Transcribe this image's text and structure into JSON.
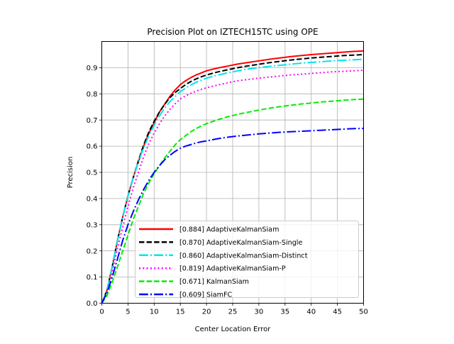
{
  "chart_data": {
    "type": "line",
    "title": "Precision Plot on IZTECH15TC using OPE",
    "xlabel": "Center Location Error",
    "ylabel": "Precision",
    "xlim": [
      0,
      50
    ],
    "ylim": [
      0,
      1.0
    ],
    "xticks": [
      0,
      5,
      10,
      15,
      20,
      25,
      30,
      35,
      40,
      45,
      50
    ],
    "yticks": [
      0.0,
      0.1,
      0.2,
      0.3,
      0.4,
      0.5,
      0.6,
      0.7,
      0.8,
      0.9
    ],
    "xtick_labels": [
      "0",
      "5",
      "10",
      "15",
      "20",
      "25",
      "30",
      "35",
      "40",
      "45",
      "50"
    ],
    "ytick_labels": [
      "0.0",
      "0.1",
      "0.2",
      "0.3",
      "0.4",
      "0.5",
      "0.6",
      "0.7",
      "0.8",
      "0.9"
    ],
    "grid": true,
    "legend_position": "lower-right",
    "x": [
      0,
      1,
      2,
      3,
      4,
      5,
      6,
      7,
      8,
      9,
      10,
      11,
      12,
      13,
      14,
      15,
      16,
      17,
      18,
      19,
      20,
      22,
      24,
      26,
      28,
      30,
      32,
      34,
      36,
      38,
      40,
      42,
      44,
      46,
      48,
      50
    ],
    "series": [
      {
        "name": "[0.884] AdaptiveKalmanSiam",
        "color": "#ff0000",
        "style": "solid",
        "values": [
          0,
          0.05,
          0.14,
          0.24,
          0.33,
          0.41,
          0.48,
          0.54,
          0.6,
          0.65,
          0.69,
          0.73,
          0.76,
          0.79,
          0.815,
          0.835,
          0.85,
          0.862,
          0.872,
          0.88,
          0.888,
          0.898,
          0.906,
          0.914,
          0.92,
          0.926,
          0.932,
          0.937,
          0.942,
          0.946,
          0.95,
          0.953,
          0.956,
          0.959,
          0.962,
          0.964
        ]
      },
      {
        "name": "[0.870] AdaptiveKalmanSiam-Single",
        "color": "#000000",
        "style": "dashed",
        "values": [
          0,
          0.05,
          0.14,
          0.24,
          0.33,
          0.41,
          0.48,
          0.545,
          0.605,
          0.655,
          0.695,
          0.73,
          0.76,
          0.785,
          0.805,
          0.82,
          0.835,
          0.847,
          0.857,
          0.865,
          0.872,
          0.883,
          0.892,
          0.9,
          0.907,
          0.913,
          0.919,
          0.924,
          0.929,
          0.933,
          0.937,
          0.94,
          0.943,
          0.946,
          0.948,
          0.95
        ]
      },
      {
        "name": "[0.860] AdaptiveKalmanSiam-Distinct",
        "color": "#00e5ee",
        "style": "dashdot",
        "values": [
          0,
          0.05,
          0.14,
          0.24,
          0.33,
          0.41,
          0.48,
          0.54,
          0.595,
          0.64,
          0.68,
          0.715,
          0.745,
          0.77,
          0.79,
          0.808,
          0.822,
          0.834,
          0.844,
          0.852,
          0.86,
          0.871,
          0.88,
          0.888,
          0.895,
          0.9,
          0.905,
          0.909,
          0.913,
          0.917,
          0.92,
          0.923,
          0.926,
          0.928,
          0.93,
          0.932
        ]
      },
      {
        "name": "[0.819] AdaptiveKalmanSiam-P",
        "color": "#ff00ff",
        "style": "dotted",
        "values": [
          0,
          0.04,
          0.12,
          0.21,
          0.29,
          0.37,
          0.44,
          0.5,
          0.56,
          0.61,
          0.65,
          0.685,
          0.715,
          0.74,
          0.762,
          0.78,
          0.792,
          0.802,
          0.81,
          0.817,
          0.823,
          0.833,
          0.842,
          0.85,
          0.855,
          0.86,
          0.864,
          0.868,
          0.872,
          0.875,
          0.878,
          0.881,
          0.884,
          0.886,
          0.888,
          0.89
        ]
      },
      {
        "name": "[0.671] KalmanSiam",
        "color": "#00ee00",
        "style": "dashed",
        "values": [
          0,
          0.03,
          0.08,
          0.14,
          0.2,
          0.26,
          0.32,
          0.37,
          0.42,
          0.46,
          0.495,
          0.525,
          0.555,
          0.58,
          0.605,
          0.625,
          0.64,
          0.655,
          0.667,
          0.677,
          0.686,
          0.7,
          0.712,
          0.722,
          0.73,
          0.738,
          0.745,
          0.751,
          0.756,
          0.761,
          0.765,
          0.769,
          0.772,
          0.775,
          0.778,
          0.78
        ]
      },
      {
        "name": "[0.609] SiamFC",
        "color": "#0000ff",
        "style": "dashdot",
        "values": [
          0,
          0.04,
          0.1,
          0.17,
          0.24,
          0.3,
          0.35,
          0.395,
          0.435,
          0.47,
          0.5,
          0.525,
          0.548,
          0.565,
          0.58,
          0.592,
          0.6,
          0.606,
          0.612,
          0.617,
          0.62,
          0.628,
          0.634,
          0.639,
          0.643,
          0.647,
          0.65,
          0.653,
          0.655,
          0.657,
          0.659,
          0.661,
          0.663,
          0.665,
          0.667,
          0.668
        ]
      }
    ]
  }
}
